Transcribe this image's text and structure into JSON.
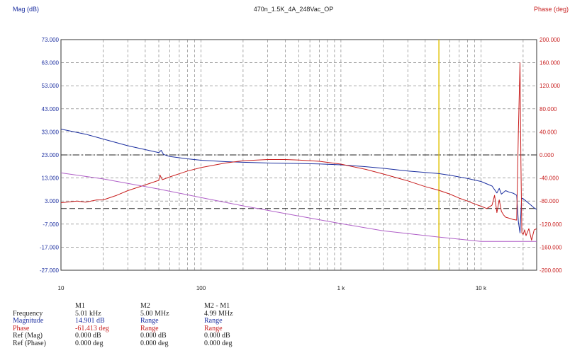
{
  "header": {
    "left_axis_title": "Mag (dB)",
    "title": "470n_1.5K_4A_248Vac_OP",
    "right_axis_title": "Phase (deg)"
  },
  "colors": {
    "magnitude": "#1c2fa0",
    "phase": "#c81e1e",
    "reference": "#b060c8",
    "marker": "#e0c000",
    "grid": "#707070"
  },
  "chart_data": {
    "type": "line",
    "title": "470n_1.5K_4A_248Vac_OP",
    "x_scale": "log",
    "xlim": [
      10,
      25000
    ],
    "x_ticks": [
      10,
      100,
      1000,
      10000
    ],
    "x_tick_labels": [
      "10",
      "100",
      "1 k",
      "10 k"
    ],
    "ylabel_left": "Mag (dB)",
    "ylabel_right": "Phase (deg)",
    "ylim_left": [
      -27,
      73
    ],
    "ylim_right": [
      -200,
      200
    ],
    "y_ticks_left": [
      "73.000",
      "63.000",
      "53.000",
      "43.000",
      "33.000",
      "23.000",
      "13.000",
      "3.000",
      "-7.000",
      "-17.000",
      "-27.000"
    ],
    "y_ticks_right": [
      "200.000",
      "160.000",
      "120.000",
      "80.000",
      "40.000",
      "0.000",
      "-40.000",
      "-80.000",
      "-120.000",
      "-160.000",
      "-200.000"
    ],
    "grid": true,
    "reference_lines": [
      {
        "axis": "left",
        "value": 23,
        "style": "dash-dot"
      },
      {
        "axis": "right",
        "value": -93,
        "style": "dashed"
      }
    ],
    "marker_x": 5010,
    "series": [
      {
        "axis": "left",
        "x": [
          10,
          15,
          20,
          30,
          50,
          52,
          54,
          60,
          80,
          100,
          150,
          200,
          300,
          500,
          700,
          1000,
          1500,
          2000,
          3000,
          4000,
          5000,
          6000,
          8000,
          10000,
          12000,
          13000,
          13500,
          14000,
          15000,
          16000,
          17000,
          18000,
          18500,
          19000,
          19500,
          20000,
          21000,
          22000,
          23000,
          24000,
          25000
        ],
        "y": [
          34.2,
          32.0,
          29.9,
          27.0,
          24.0,
          25.0,
          23.2,
          22.3,
          21.3,
          20.7,
          20.1,
          19.8,
          19.5,
          19.3,
          19.1,
          18.7,
          17.9,
          17.2,
          16.0,
          15.4,
          14.9,
          14.2,
          12.8,
          11.5,
          9.5,
          6.5,
          8.5,
          6.0,
          7.5,
          6.8,
          6.4,
          5.5,
          -6.0,
          -10.8,
          4.3,
          4.0,
          3.0,
          2.0,
          1.0,
          0.0,
          -0.6
        ]
      },
      {
        "axis": "right",
        "x": [
          10,
          13,
          15,
          18,
          20,
          25,
          30,
          40,
          50,
          51,
          53,
          60,
          80,
          100,
          150,
          200,
          300,
          400,
          500,
          700,
          1000,
          1500,
          2000,
          3000,
          4000,
          5000,
          6000,
          7000,
          8000,
          9000,
          10000,
          11000,
          12000,
          12500,
          13000,
          13500,
          14000,
          14500,
          15000,
          16000,
          17000,
          18000,
          18500,
          19000,
          19300,
          19600,
          20000,
          20500,
          21000,
          22000,
          23000,
          24000,
          25000
        ],
        "y": [
          -83,
          -80,
          -82,
          -78,
          -78,
          -70,
          -62,
          -52,
          -44,
          -35,
          -43,
          -38,
          -28,
          -22,
          -14,
          -10,
          -8,
          -8,
          -9,
          -11,
          -16,
          -25,
          -33,
          -45,
          -55,
          -61.4,
          -68,
          -75,
          -80,
          -85,
          -89,
          -93,
          -87,
          -70,
          -100,
          -78,
          -98,
          -104,
          -108,
          -110,
          -112,
          -113,
          40,
          160,
          -15,
          -135,
          -138,
          -130,
          -140,
          -128,
          -148,
          -130,
          -128
        ]
      },
      {
        "axis": "left",
        "x": [
          10,
          20,
          50,
          100,
          200,
          500,
          1000,
          2000,
          5000,
          10000,
          20000,
          25000
        ],
        "y": [
          15.2,
          12.6,
          8.2,
          4.5,
          0.9,
          -3.5,
          -6.8,
          -9.9,
          -12.6,
          -14.5,
          -14.5,
          -14.5
        ]
      }
    ]
  },
  "measurements": {
    "columns": [
      "M1",
      "M2",
      "M2 - M1"
    ],
    "rows": [
      {
        "label": "Frequency",
        "m1": "5.01 kHz",
        "m2": "5.00 MHz",
        "diff": "4.99 MHz"
      },
      {
        "label": "Magnitude",
        "m1": "14.901 dB",
        "m2": "Range",
        "diff": "Range"
      },
      {
        "label": "Phase",
        "m1": "-61.413 deg",
        "m2": "Range",
        "diff": "Range"
      },
      {
        "label": "Ref (Mag)",
        "m1": "0.000 dB",
        "m2": "0.000 dB",
        "diff": "0.000 dB"
      },
      {
        "label": "Ref (Phase)",
        "m1": "0.000 deg",
        "m2": "0.000 deg",
        "diff": "0.000 deg"
      }
    ]
  }
}
